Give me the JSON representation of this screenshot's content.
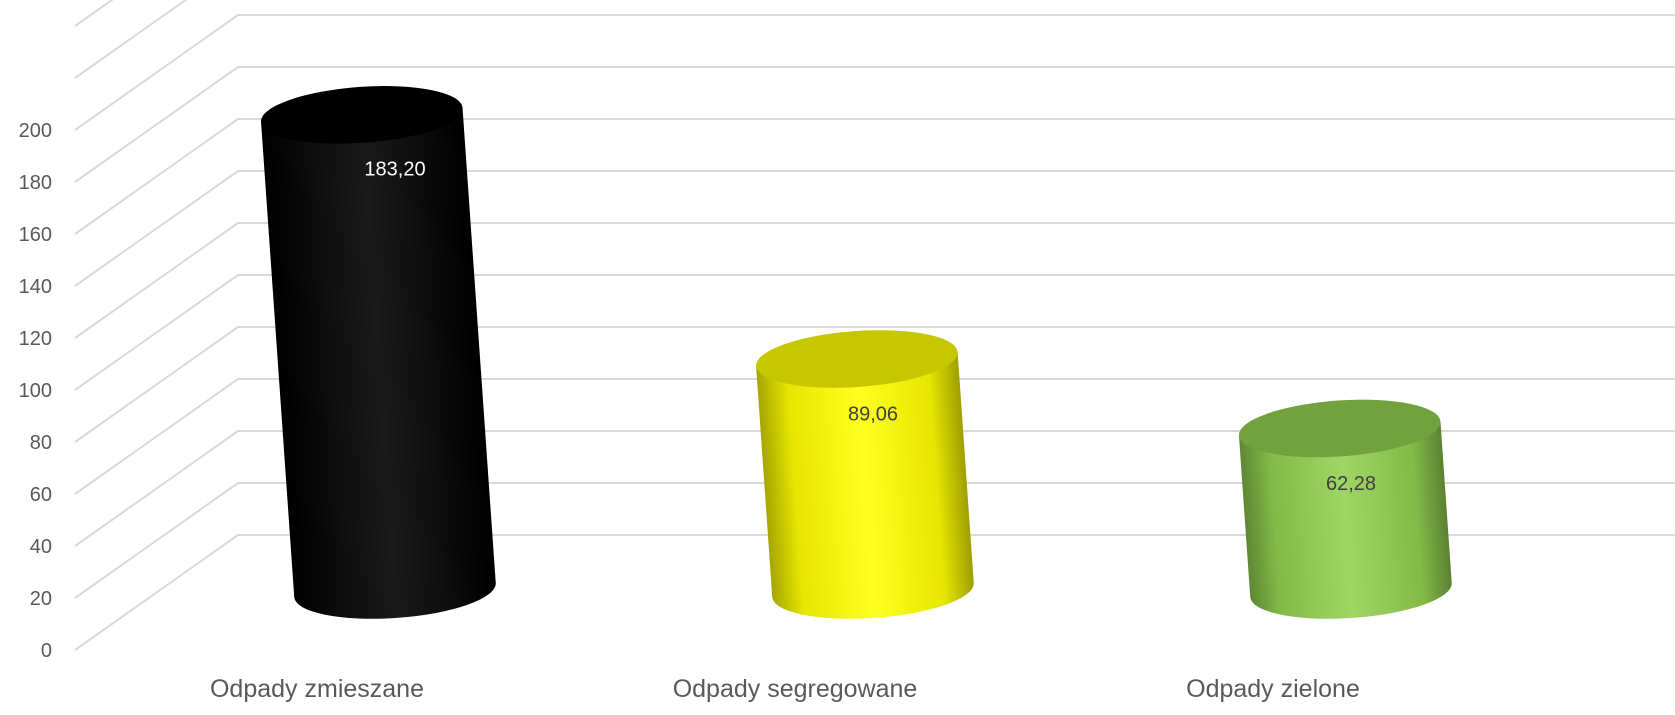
{
  "chart_data": {
    "type": "bar",
    "style": "3d-cylinder",
    "categories": [
      "Odpady zmieszane",
      "Odpady segregowane",
      "Odpady zielone"
    ],
    "values": [
      183.2,
      89.06,
      62.28
    ],
    "data_labels": [
      "183,20",
      "89,06",
      "62,28"
    ],
    "colors": [
      "#000000",
      "#ffff00",
      "#92d050"
    ],
    "label_colors": [
      "#ffffff",
      "#404040",
      "#404040"
    ],
    "yticks": [
      "0",
      "20",
      "40",
      "60",
      "80",
      "100",
      "120",
      "140",
      "160",
      "180",
      "200"
    ],
    "ylim": [
      0,
      200
    ],
    "grid": true,
    "title": "",
    "xlabel": "",
    "ylabel": ""
  }
}
